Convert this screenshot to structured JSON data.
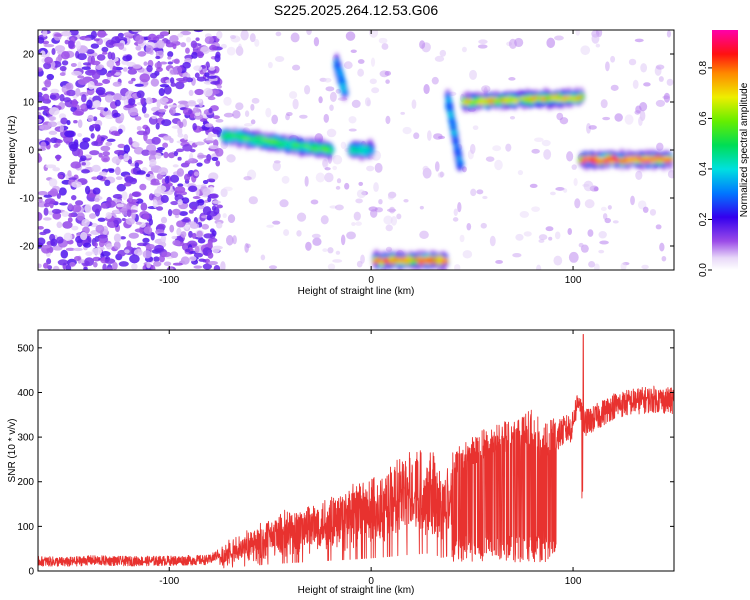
{
  "title": "S225.2025.264.12.53.G06",
  "chart_data": [
    {
      "type": "heatmap",
      "xlabel": "Height of straight line (km)",
      "ylabel": "Frequency (Hz)",
      "xlim": [
        -165,
        150
      ],
      "ylim": [
        -25,
        25
      ],
      "xticks": [
        -100,
        0,
        100
      ],
      "yticks": [
        -20,
        -10,
        0,
        10,
        20
      ],
      "colorbar": {
        "label": "Normalized spectral amplitude",
        "range": [
          0,
          0.95
        ],
        "ticks": [
          0.0,
          0.2,
          0.4,
          0.6,
          0.8
        ]
      },
      "ridges": [
        {
          "x_start": -73,
          "x_end": -20,
          "f_start": 3,
          "f_end": 0,
          "strength": 0.6
        },
        {
          "x_start": -17,
          "x_end": -13,
          "f_start": 18,
          "f_end": 12,
          "strength": 0.4
        },
        {
          "x_start": -10,
          "x_end": 0,
          "f_start": 0,
          "f_end": 0,
          "strength": 0.5
        },
        {
          "x_start": 2,
          "x_end": 37,
          "f_start": -23,
          "f_end": -23,
          "strength": 0.9
        },
        {
          "x_start": 38,
          "x_end": 44,
          "f_start": 11,
          "f_end": -3,
          "strength": 0.4
        },
        {
          "x_start": 46,
          "x_end": 104,
          "f_start": 10,
          "f_end": 11,
          "strength": 0.8
        },
        {
          "x_start": 104,
          "x_end": 148,
          "f_start": -2,
          "f_end": -2,
          "strength": 0.95
        }
      ]
    },
    {
      "type": "line",
      "xlabel": "Height of straight line (km)",
      "ylabel": "SNR (10 * v/v)",
      "xlim": [
        -165,
        150
      ],
      "ylim": [
        0,
        540
      ],
      "xticks": [
        -100,
        0,
        100
      ],
      "yticks": [
        0,
        100,
        200,
        300,
        400,
        500
      ],
      "series": [
        {
          "color": "#e8322f",
          "x": [
            -165,
            -150,
            -140,
            -120,
            -100,
            -80,
            -75,
            -70,
            -60,
            -50,
            -40,
            -30,
            -20,
            -10,
            0,
            10,
            20,
            30,
            35,
            40,
            45,
            50,
            60,
            70,
            75,
            80,
            85,
            90,
            95,
            100,
            103,
            105,
            110,
            115,
            120,
            130,
            140,
            150
          ],
          "y": [
            22,
            20,
            24,
            22,
            23,
            25,
            40,
            55,
            80,
            105,
            125,
            140,
            160,
            175,
            195,
            220,
            250,
            270,
            200,
            240,
            260,
            280,
            295,
            310,
            320,
            330,
            300,
            310,
            330,
            340,
            390,
            330,
            340,
            355,
            370,
            380,
            385,
            380
          ]
        }
      ]
    }
  ]
}
